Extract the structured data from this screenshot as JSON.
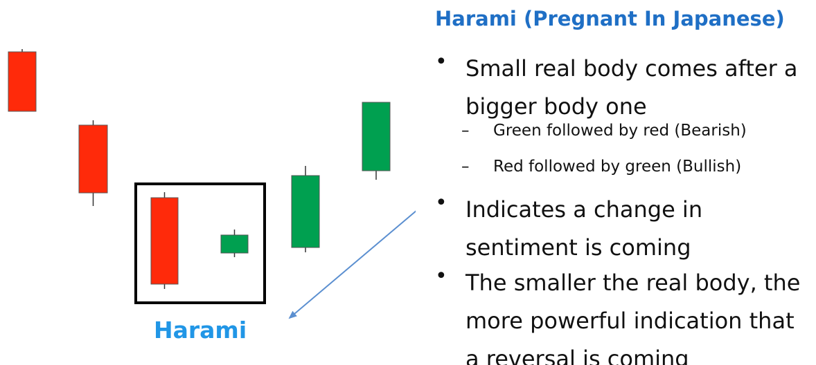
{
  "title": "Harami (Pregnant In Japanese)",
  "diagram_label": "Harami",
  "colors": {
    "bearish": "#ff2a0a",
    "bullish": "#00a050",
    "title": "#1f6fc5",
    "label": "#2196e6",
    "arrow": "#5b8fd0",
    "box": "#000000"
  },
  "bullets": [
    {
      "lines": [
        "Small real body comes after a",
        "bigger body one"
      ],
      "sub_items": [
        "Green followed by red (Bearish)",
        "Red followed by green (Bullish)"
      ]
    },
    {
      "lines": [
        "Indicates a change in",
        "sentiment is coming"
      ],
      "sub_items": []
    },
    {
      "lines": [
        "The smaller the real body, the",
        "more powerful indication that",
        "a reversal is coming"
      ],
      "sub_items": []
    }
  ],
  "candles": [
    {
      "type": "bearish"
    },
    {
      "type": "bearish"
    },
    {
      "type": "bearish",
      "in_pattern": true
    },
    {
      "type": "bullish",
      "in_pattern": true
    },
    {
      "type": "bullish"
    },
    {
      "type": "bullish"
    }
  ]
}
